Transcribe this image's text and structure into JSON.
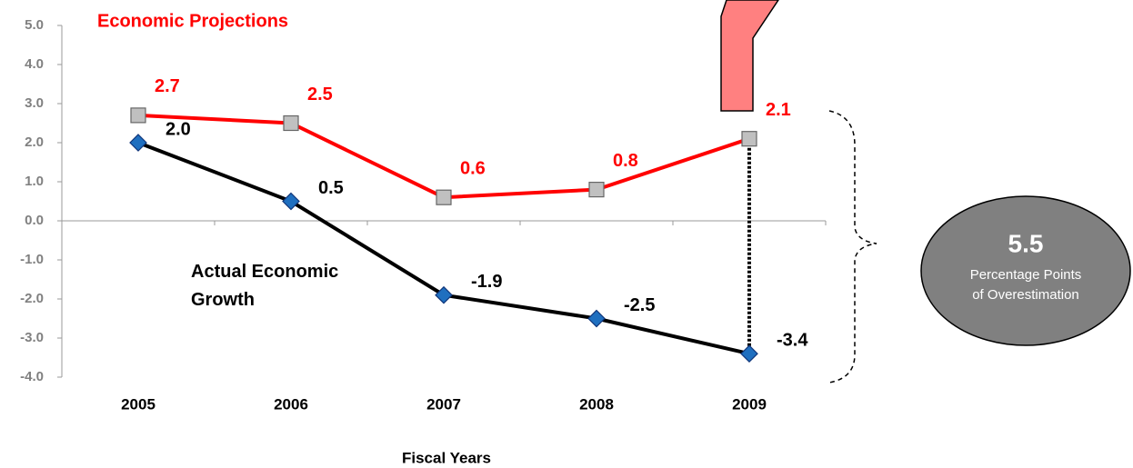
{
  "chart_data": {
    "type": "line",
    "categories": [
      "2005",
      "2006",
      "2007",
      "2008",
      "2009"
    ],
    "series": [
      {
        "name": "Economic Projections",
        "color": "#ff0000",
        "marker_color": "#c0c0c0",
        "values": [
          2.7,
          2.5,
          0.6,
          0.8,
          2.1
        ],
        "value_labels": [
          "2.7",
          "2.5",
          "0.6",
          "0.8",
          "2.1"
        ]
      },
      {
        "name": "Actual Economic Growth",
        "color": "#000000",
        "marker_color": "#1f6fbf",
        "values": [
          2.0,
          0.5,
          -1.9,
          -2.5,
          -3.4
        ],
        "value_labels": [
          "2.0",
          "0.5",
          "-1.9",
          "-2.5",
          "-3.4"
        ]
      }
    ],
    "ylim": [
      -4,
      5
    ],
    "yticks": [
      {
        "value": -4,
        "label": "-4.0"
      },
      {
        "value": -3,
        "label": "-3.0"
      },
      {
        "value": -2,
        "label": "-2.0"
      },
      {
        "value": -1,
        "label": "-1.0"
      },
      {
        "value": 0,
        "label": "0.0"
      },
      {
        "value": 1,
        "label": "1.0"
      },
      {
        "value": 2,
        "label": "2.0"
      },
      {
        "value": 3,
        "label": "3.0"
      },
      {
        "value": 4,
        "label": "4.0"
      },
      {
        "value": 5,
        "label": "5.0"
      }
    ],
    "x_label": "Fiscal Years",
    "annotation": {
      "value": "5.5",
      "text_lines": [
        "Percentage Points",
        "of Overestimation"
      ]
    }
  }
}
